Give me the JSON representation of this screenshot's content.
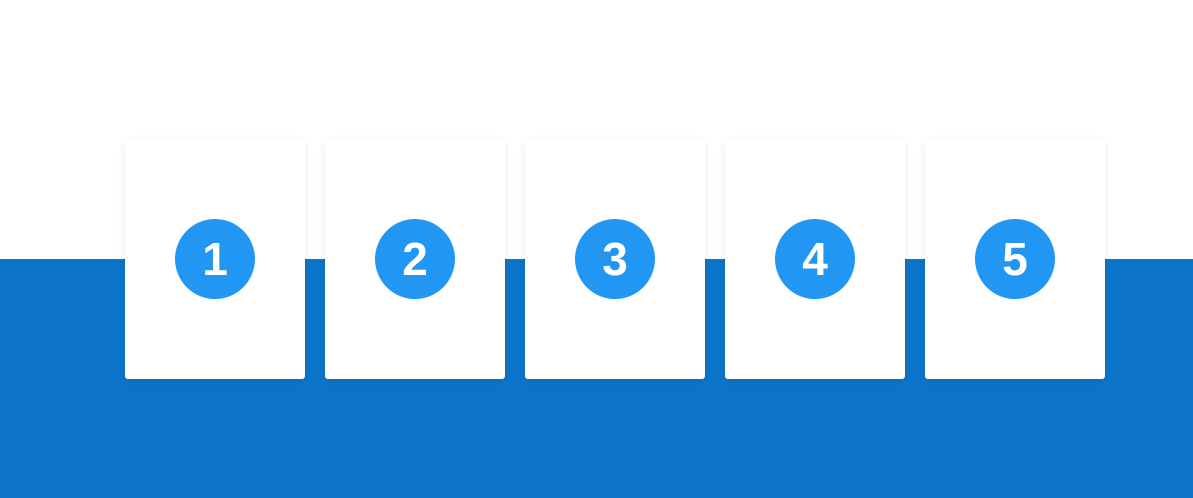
{
  "cards": [
    {
      "label": "1"
    },
    {
      "label": "2"
    },
    {
      "label": "3"
    },
    {
      "label": "4"
    },
    {
      "label": "5"
    }
  ]
}
